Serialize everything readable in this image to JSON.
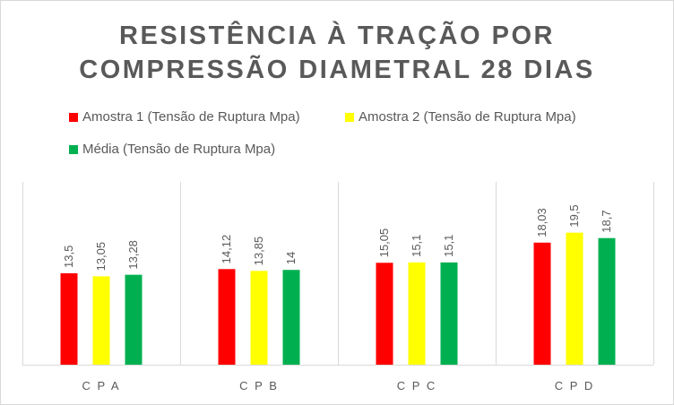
{
  "chart_data": {
    "type": "bar",
    "title_lines": [
      "RESISTÊNCIA À TRAÇÃO POR",
      "COMPRESSÃO DIAMETRAL 28 DIAS"
    ],
    "categories": [
      "C P  A",
      "C P  B",
      "C P  C",
      "C P  D"
    ],
    "series": [
      {
        "name": "Amostra 1 (Tensão de  Ruptura Mpa)",
        "color": "#ff0000",
        "values": [
          13.5,
          14.12,
          15.05,
          18.03
        ],
        "labels": [
          "13,5",
          "14,12",
          "15,05",
          "18,03"
        ]
      },
      {
        "name": "Amostra 2  (Tensão de  Ruptura Mpa)",
        "color": "#ffff00",
        "values": [
          13.05,
          13.85,
          15.1,
          19.5
        ],
        "labels": [
          "13,05",
          "13,85",
          "15,1",
          "19,5"
        ]
      },
      {
        "name": "Média (Tensão de  Ruptura Mpa)",
        "color": "#00b050",
        "values": [
          13.28,
          14,
          15.1,
          18.7
        ],
        "labels": [
          "13,28",
          "14",
          "15,1",
          "18,7"
        ]
      }
    ],
    "ylim": [
      0,
      27
    ],
    "grid": "vertical-category-separators",
    "legend": "top",
    "xlabel": "",
    "ylabel": ""
  }
}
